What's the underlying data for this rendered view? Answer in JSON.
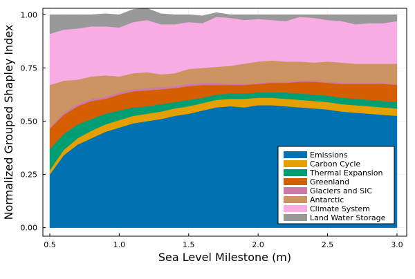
{
  "chart_data": {
    "type": "area",
    "stacked": true,
    "title": "",
    "xlabel": "Sea Level Milestone (m)",
    "ylabel": "Normalized Grouped Shapley Index",
    "xlim": [
      0.45,
      3.07
    ],
    "ylim": [
      -0.04,
      1.03
    ],
    "xticks": [
      0.5,
      1.0,
      1.5,
      2.0,
      2.5,
      3.0
    ],
    "xtick_labels": [
      "0.5",
      "1.0",
      "1.5",
      "2.0",
      "2.5",
      "3.0"
    ],
    "yticks": [
      0.0,
      0.25,
      0.5,
      0.75,
      1.0
    ],
    "ytick_labels": [
      "0.00",
      "0.25",
      "0.50",
      "0.75",
      "1.00"
    ],
    "grid": true,
    "legend_position": "bottom-right",
    "x": [
      0.5,
      0.6,
      0.7,
      0.8,
      0.9,
      1.0,
      1.1,
      1.2,
      1.3,
      1.4,
      1.5,
      1.6,
      1.7,
      1.8,
      1.9,
      2.0,
      2.1,
      2.2,
      2.3,
      2.4,
      2.5,
      2.6,
      2.7,
      2.8,
      2.9,
      3.0
    ],
    "series": [
      {
        "name": "Emissions",
        "color": "#0072B2",
        "values": [
          0.25,
          0.34,
          0.39,
          0.42,
          0.45,
          0.47,
          0.49,
          0.5,
          0.51,
          0.525,
          0.535,
          0.55,
          0.565,
          0.57,
          0.565,
          0.575,
          0.575,
          0.57,
          0.565,
          0.56,
          0.555,
          0.545,
          0.54,
          0.535,
          0.53,
          0.525
        ]
      },
      {
        "name": "Carbon Cycle",
        "color": "#E69F00",
        "values": [
          0.02,
          0.025,
          0.03,
          0.035,
          0.035,
          0.035,
          0.035,
          0.035,
          0.035,
          0.035,
          0.035,
          0.035,
          0.035,
          0.035,
          0.04,
          0.035,
          0.035,
          0.035,
          0.035,
          0.035,
          0.035,
          0.035,
          0.035,
          0.035,
          0.035,
          0.035
        ]
      },
      {
        "name": "Thermal Expansion",
        "color": "#009E73",
        "values": [
          0.1,
          0.075,
          0.065,
          0.055,
          0.05,
          0.045,
          0.04,
          0.035,
          0.035,
          0.03,
          0.03,
          0.025,
          0.025,
          0.025,
          0.025,
          0.025,
          0.025,
          0.03,
          0.03,
          0.03,
          0.03,
          0.03,
          0.03,
          0.03,
          0.03,
          0.03
        ]
      },
      {
        "name": "Greenland",
        "color": "#D55E00",
        "values": [
          0.095,
          0.09,
          0.085,
          0.085,
          0.07,
          0.075,
          0.075,
          0.075,
          0.07,
          0.065,
          0.065,
          0.06,
          0.045,
          0.04,
          0.04,
          0.04,
          0.045,
          0.045,
          0.055,
          0.06,
          0.06,
          0.065,
          0.07,
          0.075,
          0.08,
          0.08
        ]
      },
      {
        "name": "Glaciers and SIC",
        "color": "#CC79A7",
        "values": [
          0.005,
          0.01,
          0.01,
          0.01,
          0.01,
          0.01,
          0.01,
          0.01,
          0.01,
          0.01,
          0.01,
          0.01,
          0.01,
          0.005,
          0.005,
          0.005,
          0.005,
          0.005,
          0.005,
          0.005,
          0.005,
          0.005,
          0.005,
          0.005,
          0.005,
          0.005
        ]
      },
      {
        "name": "Antarctic",
        "color": "#CC9460",
        "values": [
          0.2,
          0.15,
          0.115,
          0.105,
          0.1,
          0.075,
          0.075,
          0.075,
          0.06,
          0.06,
          0.07,
          0.07,
          0.075,
          0.085,
          0.095,
          0.1,
          0.1,
          0.095,
          0.09,
          0.085,
          0.095,
          0.095,
          0.09,
          0.09,
          0.09,
          0.095
        ]
      },
      {
        "name": "Climate System",
        "color": "#F9ABE3",
        "values": [
          0.24,
          0.24,
          0.24,
          0.235,
          0.23,
          0.23,
          0.24,
          0.245,
          0.235,
          0.23,
          0.22,
          0.21,
          0.235,
          0.225,
          0.205,
          0.2,
          0.19,
          0.19,
          0.21,
          0.21,
          0.195,
          0.195,
          0.185,
          0.19,
          0.19,
          0.2
        ]
      },
      {
        "name": "Land Water Storage",
        "color": "#999999",
        "values": [
          0.09,
          0.07,
          0.065,
          0.055,
          0.06,
          0.06,
          0.06,
          0.055,
          0.05,
          0.045,
          0.035,
          0.035,
          0.02,
          0.015,
          0.025,
          0.02,
          0.025,
          0.03,
          0.01,
          0.015,
          0.025,
          0.03,
          0.045,
          0.04,
          0.04,
          0.03
        ]
      }
    ]
  }
}
